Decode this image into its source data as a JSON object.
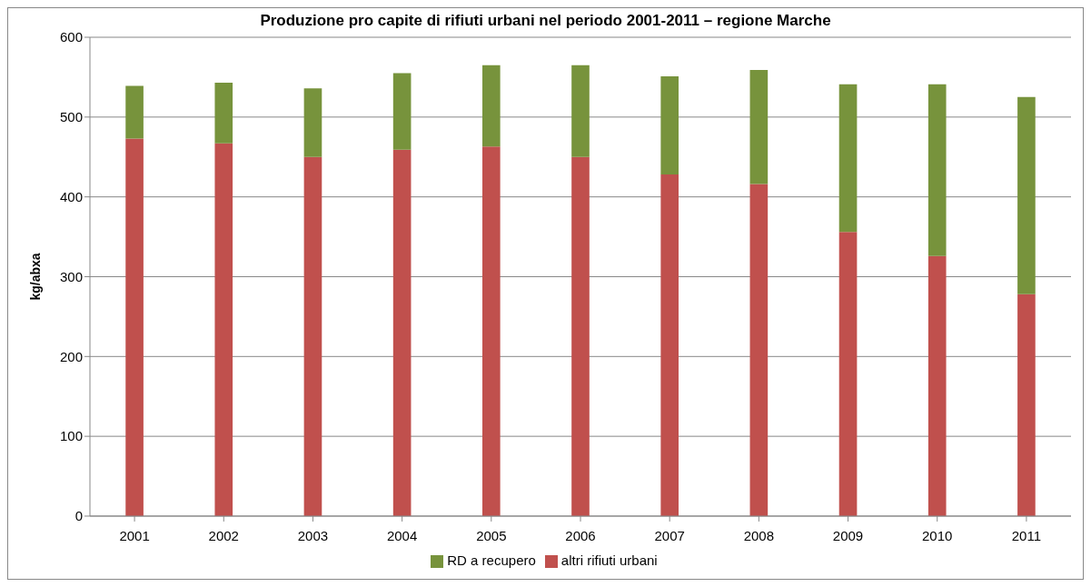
{
  "chart_data": {
    "type": "bar",
    "title": "Produzione pro capite di rifiuti urbani nel periodo 2001-2011 – regione Marche",
    "ylabel": "kg/abxa",
    "categories": [
      "2001",
      "2002",
      "2003",
      "2004",
      "2005",
      "2006",
      "2007",
      "2008",
      "2009",
      "2010",
      "2011"
    ],
    "series": [
      {
        "name": "altri rifiuti urbani",
        "color": "#c0504d",
        "values": [
          473,
          467,
          450,
          459,
          463,
          450,
          428,
          416,
          356,
          326,
          278
        ]
      },
      {
        "name": "RD a recupero",
        "color": "#77933c",
        "values": [
          66,
          76,
          86,
          96,
          102,
          115,
          123,
          143,
          185,
          215,
          247
        ]
      }
    ],
    "stacked": true,
    "ylim": [
      0,
      600
    ],
    "yticks": [
      0,
      100,
      200,
      300,
      400,
      500,
      600
    ],
    "grid": "y",
    "legend": "bottom"
  }
}
